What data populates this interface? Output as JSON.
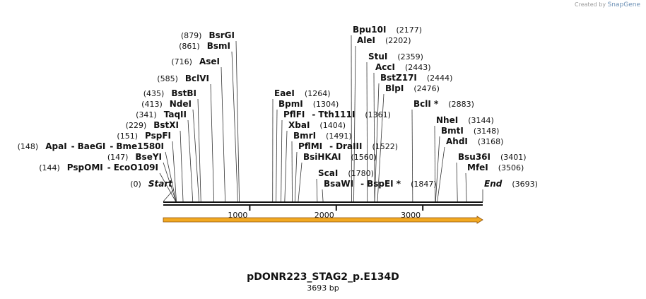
{
  "watermark": {
    "prefix": "Created by",
    "brand": "SnapGene"
  },
  "plasmid": {
    "name": "pDONR223_STAG2_p.E134D",
    "size_label": "3693 bp",
    "length": 3693
  },
  "ticks": [
    {
      "value": 1000,
      "label": "1000"
    },
    {
      "value": 2000,
      "label": "2000"
    },
    {
      "value": 3000,
      "label": "3000"
    }
  ],
  "feature": {
    "type": "arrow",
    "start": 0,
    "end": 3693,
    "color": "#f2a922"
  },
  "sites": [
    {
      "name": "Start",
      "pos_label": "(0)",
      "pos": 0,
      "italic": true,
      "pos_left": true
    },
    {
      "name": "PspOMI",
      "name2": "EcoO109I",
      "pos_label": "(144)",
      "pos": 144,
      "pos_left": true
    },
    {
      "name": "BseYI",
      "pos_label": "(147)",
      "pos": 147,
      "pos_left": true
    },
    {
      "name": "ApaI",
      "name2": "BaeGI",
      "name3": "Bme1580I",
      "pos_label": "(148)",
      "pos": 148,
      "pos_left": true
    },
    {
      "name": "PspFI",
      "pos_label": "(151)",
      "pos": 151,
      "pos_left": true
    },
    {
      "name": "BstXI",
      "pos_label": "(229)",
      "pos": 229,
      "pos_left": true
    },
    {
      "name": "TaqII",
      "pos_label": "(341)",
      "pos": 341,
      "pos_left": true
    },
    {
      "name": "NdeI",
      "pos_label": "(413)",
      "pos": 413,
      "pos_left": true
    },
    {
      "name": "BstBI",
      "pos_label": "(435)",
      "pos": 435,
      "pos_left": true
    },
    {
      "name": "BclVI",
      "pos_label": "(585)",
      "pos": 585,
      "pos_left": true
    },
    {
      "name": "AseI",
      "pos_label": "(716)",
      "pos": 716,
      "pos_left": true
    },
    {
      "name": "BsmI",
      "pos_label": "(861)",
      "pos": 861,
      "pos_left": true
    },
    {
      "name": "BsrGI",
      "pos_label": "(879)",
      "pos": 879,
      "pos_left": true
    },
    {
      "name": "EaeI",
      "pos_label": "(1264)",
      "pos": 1264
    },
    {
      "name": "BpmI",
      "pos_label": "(1304)",
      "pos": 1304
    },
    {
      "name": "PflFI",
      "name2": "Tth111I",
      "pos_label": "(1361)",
      "pos": 1361
    },
    {
      "name": "XbaI",
      "pos_label": "(1404)",
      "pos": 1404
    },
    {
      "name": "BmrI",
      "pos_label": "(1491)",
      "pos": 1491
    },
    {
      "name": "PflMI",
      "name2": "DraIII",
      "pos_label": "(1522)",
      "pos": 1522
    },
    {
      "name": "BsiHKAI",
      "pos_label": "(1560)",
      "pos": 1560
    },
    {
      "name": "ScaI",
      "pos_label": "(1780)",
      "pos": 1780
    },
    {
      "name": "BsaWI",
      "name2": "BspEI *",
      "pos_label": "(1847)",
      "pos": 1847
    },
    {
      "name": "Bpu10I",
      "pos_label": "(2177)",
      "pos": 2177
    },
    {
      "name": "AleI",
      "pos_label": "(2202)",
      "pos": 2202
    },
    {
      "name": "StuI",
      "pos_label": "(2359)",
      "pos": 2359
    },
    {
      "name": "AccI",
      "pos_label": "(2443)",
      "pos": 2443
    },
    {
      "name": "BstZ17I",
      "pos_label": "(2444)",
      "pos": 2444
    },
    {
      "name": "BlpI",
      "pos_label": "(2476)",
      "pos": 2476
    },
    {
      "name": "BclI *",
      "pos_label": "(2883)",
      "pos": 2883
    },
    {
      "name": "NheI",
      "pos_label": "(3144)",
      "pos": 3144
    },
    {
      "name": "BmtI",
      "pos_label": "(3148)",
      "pos": 3148
    },
    {
      "name": "AhdI",
      "pos_label": "(3168)",
      "pos": 3168
    },
    {
      "name": "Bsu36I",
      "pos_label": "(3401)",
      "pos": 3401
    },
    {
      "name": "MfeI",
      "pos_label": "(3506)",
      "pos": 3506
    },
    {
      "name": "End",
      "pos_label": "(3693)",
      "pos": 3693,
      "italic": true
    }
  ]
}
